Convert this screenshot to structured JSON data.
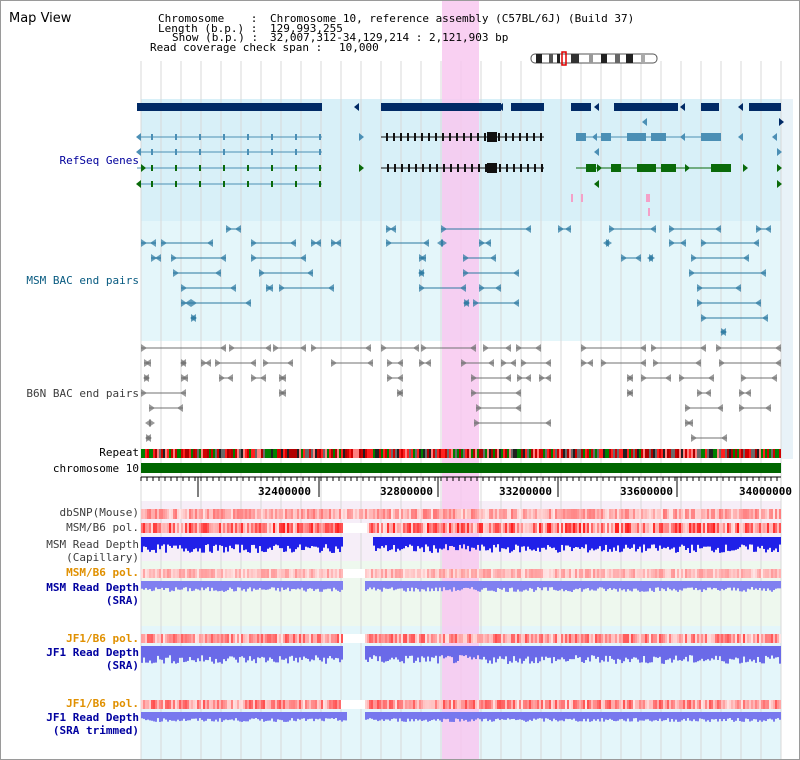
{
  "title": "Map View",
  "header": {
    "chromosome_label": "Chromosome    : ",
    "chromosome_value": "Chromosome 10, reference assembly (C57BL/6J) (Build 37)",
    "length_label": "Length (b.p.) : ",
    "length_value": "129,993,255",
    "show_label": "Show (b.p.) : ",
    "show_value": "32,007,312-34,129,214 : 2,121,903 bp",
    "coverage_label": "Read coverage check span : ",
    "coverage_value": "10,000"
  },
  "tracks": {
    "refseq": "RefSeq Genes",
    "msm_bac": "MSM BAC end pairs",
    "b6n_bac": "B6N BAC end pairs",
    "repeat": "Repeat",
    "chromosome": "chromosome 10",
    "dbsnp": "dbSNP(Mouse)",
    "msm_pol": "MSM/B6 pol.",
    "msm_depth_cap_1": "MSM Read Depth",
    "msm_depth_cap_2": "(Capillary)",
    "msm_pol_sra": "MSM/B6 pol.",
    "msm_depth_sra_1": "MSM Read Depth",
    "msm_depth_sra_2": "(SRA)",
    "jf1_pol": "JF1/B6 pol.",
    "jf1_depth_1": "JF1 Read Depth",
    "jf1_depth_2": "(SRA)",
    "jf1_pol_trim": "JF1/B6 pol.",
    "jf1_depth_trim_1": "JF1 Read Depth",
    "jf1_depth_trim_2": "(SRA trimmed)"
  },
  "axis": {
    "ticks": [
      "32400000",
      "32800000",
      "33200000",
      "33600000",
      "34000000"
    ]
  },
  "colors": {
    "gene_dark": "#002a66",
    "gene_teal": "#4b8fb5",
    "gene_green": "#0a6a0a",
    "bac_teal": "#2a78a0",
    "bac_gray": "#707070",
    "chromosome_green": "#006600",
    "highlight": "#f8c8f0",
    "depth_blue": "#2020e8",
    "depth_light": "#8080f0"
  }
}
